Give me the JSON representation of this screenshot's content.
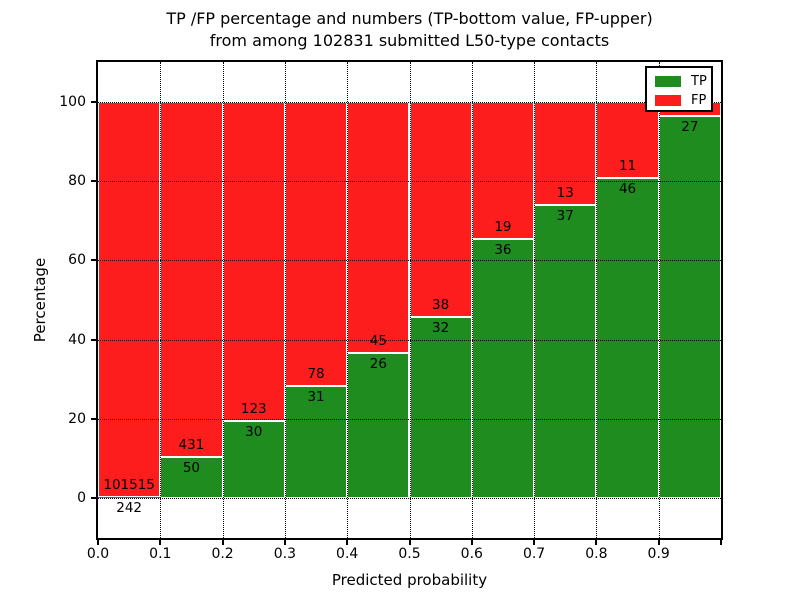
{
  "chart_data": {
    "type": "bar",
    "stacked": true,
    "title_lines": [
      "TP /FP percentage and numbers (TP-bottom value, FP-upper)",
      "from among 102831 submitted L50-type contacts"
    ],
    "xlabel": "Predicted probability",
    "ylabel": "Percentage",
    "x_tick_labels": [
      "0.0",
      "0.1",
      "0.2",
      "0.3",
      "0.4",
      "0.5",
      "0.6",
      "0.7",
      "0.8",
      "0.9"
    ],
    "y_tick_labels": [
      "0",
      "20",
      "40",
      "60",
      "80",
      "100"
    ],
    "y_ticks": [
      0,
      20,
      40,
      60,
      80,
      100
    ],
    "ylim": [
      -10,
      110
    ],
    "bin_width": 0.1,
    "grid_style": "dotted",
    "legend_position": "upper right",
    "series": [
      {
        "name": "TP",
        "color": "#1e8c1e",
        "counts": [
          242,
          50,
          30,
          31,
          26,
          32,
          36,
          37,
          46,
          27
        ]
      },
      {
        "name": "FP",
        "color": "#fd1d1d",
        "counts": [
          101515,
          431,
          123,
          78,
          45,
          38,
          19,
          13,
          11,
          null
        ]
      }
    ],
    "tp_pct": [
      0.24,
      10.4,
      19.61,
      28.44,
      36.62,
      45.71,
      65.45,
      74.0,
      80.7,
      96.43
    ]
  }
}
